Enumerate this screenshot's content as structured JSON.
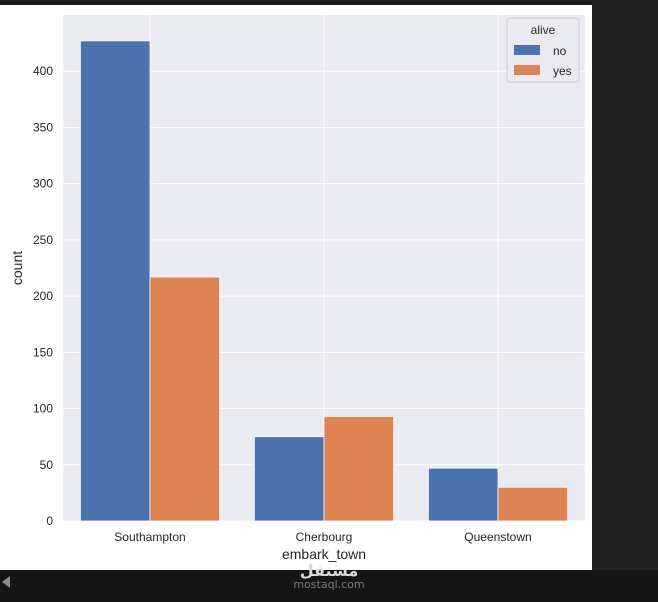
{
  "chart_data": {
    "type": "bar",
    "categories": [
      "Southampton",
      "Cherbourg",
      "Queenstown"
    ],
    "series": [
      {
        "name": "no",
        "values": [
          427,
          75,
          47
        ],
        "color": "#4c72b0"
      },
      {
        "name": "yes",
        "values": [
          217,
          93,
          30
        ],
        "color": "#dd8452"
      }
    ],
    "xlabel": "embark_town",
    "ylabel": "count",
    "ylim": [
      0,
      450
    ],
    "yticks": [
      0,
      50,
      100,
      150,
      200,
      250,
      300,
      350,
      400
    ],
    "legend_title": "alive",
    "legend_position": "top-right",
    "grid": true,
    "background": "#eaeaf2"
  },
  "watermark": {
    "logo_text": "مستقل",
    "site": "mostaql.com"
  }
}
